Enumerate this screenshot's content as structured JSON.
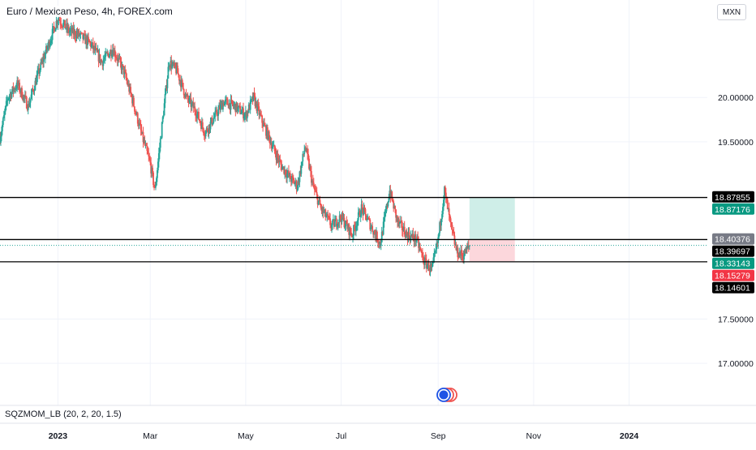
{
  "header": {
    "title": "Euro / Mexican Peso, 4h, FOREX.com",
    "currency": "MXN"
  },
  "indicator": {
    "label": "SQZMOM_LB (20, 2, 20, 1.5)"
  },
  "colors": {
    "up": "#26a69a",
    "down": "#ef5350",
    "line": "#000000",
    "profit_zone": "#cfeee8",
    "loss_zone": "#fcd7dc",
    "axis_text": "#131722",
    "grid": "#f0f3fa",
    "tag_dark": "#000000",
    "tag_green": "#089981",
    "tag_red": "#f23645",
    "tag_gray": "#787b86"
  },
  "chart_data": {
    "type": "candlestick",
    "symbol": "EURMXN",
    "interval": "4h",
    "ylim": [
      16.8,
      21.1
    ],
    "x_range": [
      "2022-11-25",
      "2024-02-20"
    ],
    "yticks": [
      {
        "label": "20.00000",
        "value": 20.0
      },
      {
        "label": "19.50000",
        "value": 19.5
      },
      {
        "label": "17.50000",
        "value": 17.5
      },
      {
        "label": "17.00000",
        "value": 17.0
      }
    ],
    "xticks": [
      {
        "label": "2023",
        "date": "2023-01-01"
      },
      {
        "label": "Mar",
        "date": "2023-03-01"
      },
      {
        "label": "May",
        "date": "2023-05-01"
      },
      {
        "label": "Jul",
        "date": "2023-07-01"
      },
      {
        "label": "Sep",
        "date": "2023-09-01"
      },
      {
        "label": "Nov",
        "date": "2023-11-01"
      },
      {
        "label": "2024",
        "date": "2024-01-01"
      }
    ],
    "horizontal_lines": [
      18.87176,
      18.39697,
      18.14601
    ],
    "price_tags": [
      {
        "label": "18.87855",
        "value": 18.87855,
        "style": "dark"
      },
      {
        "label": "18.87176",
        "value": 18.87176,
        "style": "green"
      },
      {
        "label": "18.40376",
        "value": 18.40376,
        "style": "gray"
      },
      {
        "label": "18.39697",
        "value": 18.39697,
        "style": "dark"
      },
      {
        "label": "18.33143",
        "value": 18.33143,
        "style": "green"
      },
      {
        "label": "18.15279",
        "value": 18.15279,
        "style": "red"
      },
      {
        "label": "18.14601",
        "value": 18.14601,
        "style": "dark"
      }
    ],
    "last_price": 18.33143,
    "position": {
      "start_date": "2023-09-21",
      "end_date": "2023-10-20",
      "entry": 18.39697,
      "target": 18.87176,
      "stop": 18.15279
    },
    "price_path": [
      [
        "2022-11-25",
        19.55
      ],
      [
        "2022-11-30",
        20.0
      ],
      [
        "2022-12-06",
        20.15
      ],
      [
        "2022-12-13",
        19.9
      ],
      [
        "2022-12-19",
        20.25
      ],
      [
        "2022-12-26",
        20.6
      ],
      [
        "2023-01-01",
        20.9
      ],
      [
        "2023-01-08",
        20.75
      ],
      [
        "2023-01-15",
        20.7
      ],
      [
        "2023-01-22",
        20.6
      ],
      [
        "2023-01-29",
        20.4
      ],
      [
        "2023-02-05",
        20.55
      ],
      [
        "2023-02-12",
        20.3
      ],
      [
        "2023-02-18",
        19.95
      ],
      [
        "2023-02-24",
        19.55
      ],
      [
        "2023-03-01",
        19.25
      ],
      [
        "2023-03-04",
        18.95
      ],
      [
        "2023-03-08",
        19.6
      ],
      [
        "2023-03-13",
        20.4
      ],
      [
        "2023-03-18",
        20.3
      ],
      [
        "2023-03-24",
        20.0
      ],
      [
        "2023-03-30",
        19.85
      ],
      [
        "2023-04-05",
        19.6
      ],
      [
        "2023-04-10",
        19.75
      ],
      [
        "2023-04-17",
        19.95
      ],
      [
        "2023-04-24",
        19.9
      ],
      [
        "2023-05-01",
        19.8
      ],
      [
        "2023-05-06",
        20.0
      ],
      [
        "2023-05-11",
        19.75
      ],
      [
        "2023-05-17",
        19.5
      ],
      [
        "2023-05-23",
        19.25
      ],
      [
        "2023-05-29",
        19.1
      ],
      [
        "2023-06-03",
        19.0
      ],
      [
        "2023-06-08",
        19.45
      ],
      [
        "2023-06-13",
        19.0
      ],
      [
        "2023-06-18",
        18.75
      ],
      [
        "2023-06-25",
        18.55
      ],
      [
        "2023-07-01",
        18.65
      ],
      [
        "2023-07-08",
        18.45
      ],
      [
        "2023-07-14",
        18.75
      ],
      [
        "2023-07-20",
        18.55
      ],
      [
        "2023-07-26",
        18.35
      ],
      [
        "2023-08-01",
        18.95
      ],
      [
        "2023-08-06",
        18.6
      ],
      [
        "2023-08-12",
        18.45
      ],
      [
        "2023-08-18",
        18.4
      ],
      [
        "2023-08-23",
        18.15
      ],
      [
        "2023-08-28",
        18.05
      ],
      [
        "2023-09-01",
        18.4
      ],
      [
        "2023-09-05",
        18.95
      ],
      [
        "2023-09-09",
        18.55
      ],
      [
        "2023-09-13",
        18.25
      ],
      [
        "2023-09-17",
        18.22
      ],
      [
        "2023-09-21",
        18.33
      ]
    ]
  }
}
